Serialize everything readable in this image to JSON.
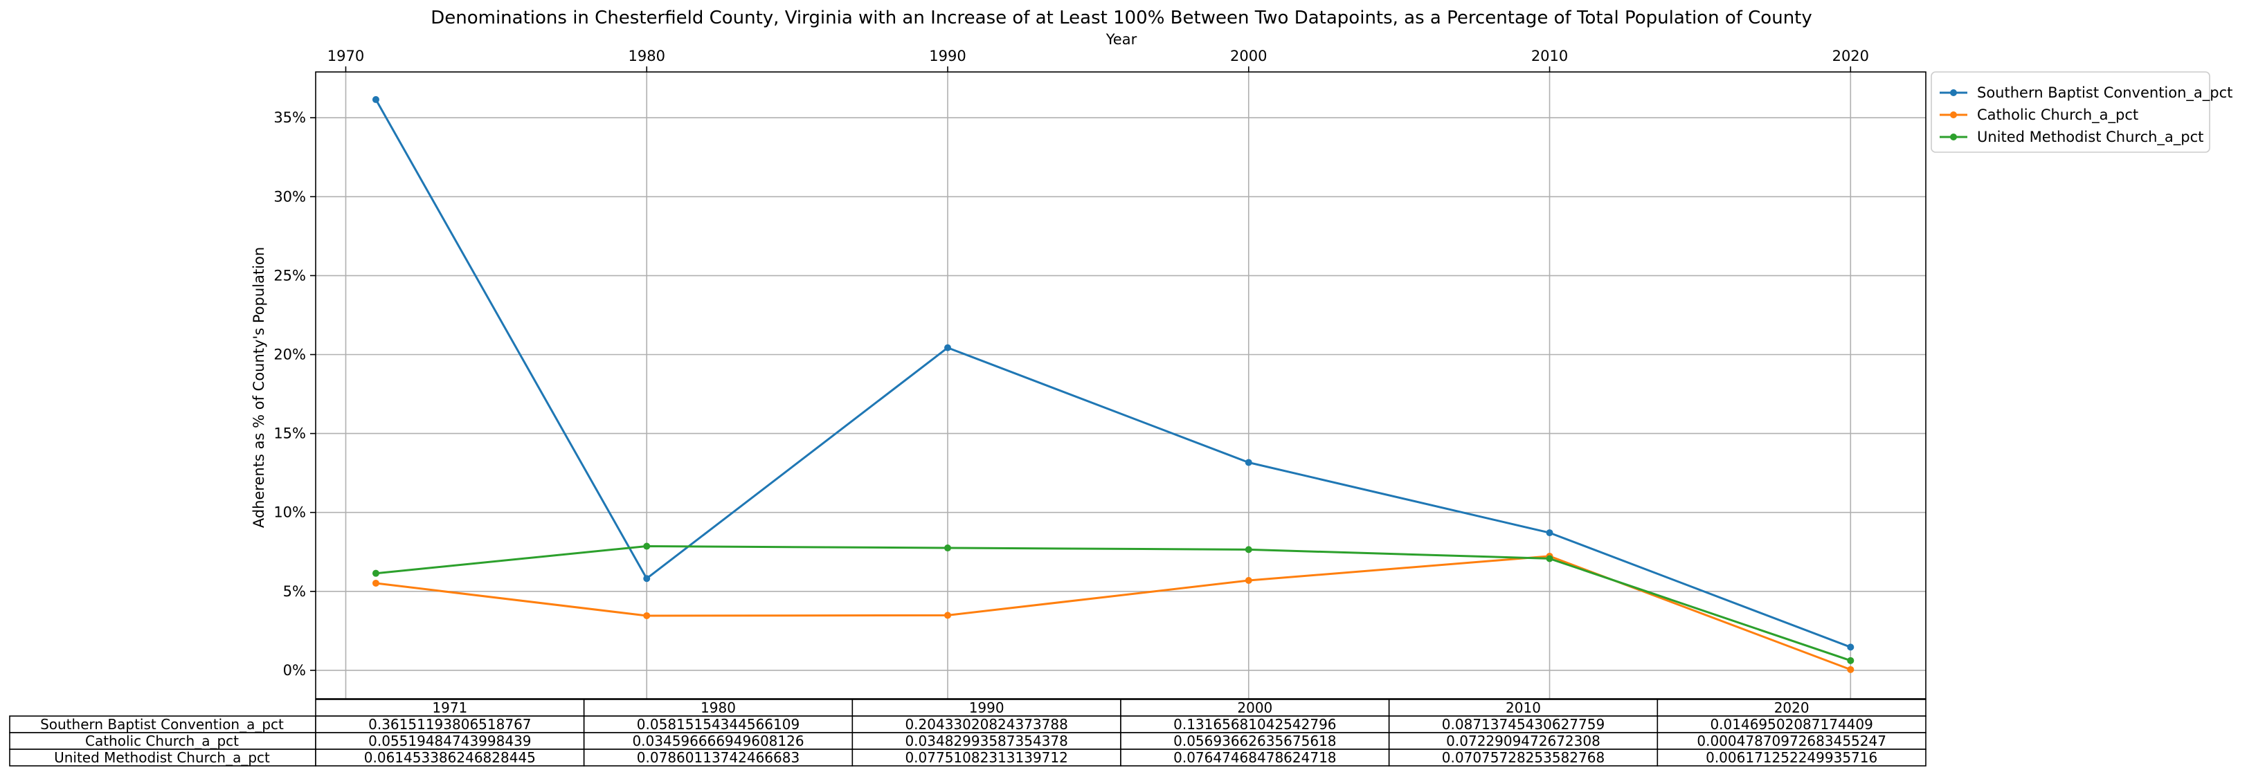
{
  "chart_data": {
    "type": "line",
    "title": "Denominations in Chesterfield County, Virginia with an Increase of at Least 100% Between Two Datapoints, as a Percentage of Total Population of County",
    "xlabel": "Year",
    "ylabel": "Adherents as % of County's Population",
    "x_ticks": [
      "1970",
      "1980",
      "1990",
      "2000",
      "2010",
      "2020"
    ],
    "y_ticks": [
      "0%",
      "5%",
      "10%",
      "15%",
      "20%",
      "25%",
      "30%",
      "35%"
    ],
    "xlim": [
      1969,
      2022.5
    ],
    "ylim": [
      -0.018,
      0.379
    ],
    "grid": true,
    "legend_position": "outside-top-right",
    "x": [
      1971,
      1980,
      1990,
      2000,
      2010,
      2020
    ],
    "series": [
      {
        "name": "Southern Baptist Convention_a_pct",
        "color": "#1f77b4",
        "values": [
          0.36151193806518767,
          0.05815154344566109,
          0.20433020824373788,
          0.13165681042542796,
          0.08713745430627759,
          0.01469502087174409
        ]
      },
      {
        "name": "Catholic Church_a_pct",
        "color": "#ff7f0e",
        "values": [
          0.05519484743998439,
          0.034596666949608126,
          0.03482993587354378,
          0.05693662635675618,
          0.0722909472672308,
          0.00047870972683455247
        ]
      },
      {
        "name": "United Methodist Church_a_pct",
        "color": "#2ca02c",
        "values": [
          0.061453386246828445,
          0.07860113742466683,
          0.07751082313139712,
          0.07647468478624718,
          0.07075728253582768,
          0.006171252249935716
        ]
      }
    ],
    "table": {
      "columns": [
        "1971",
        "1980",
        "1990",
        "2000",
        "2010",
        "2020"
      ],
      "rows": [
        {
          "label": "Southern Baptist Convention_a_pct",
          "cells": [
            "0.36151193806518767",
            "0.05815154344566109",
            "0.20433020824373788",
            "0.13165681042542796",
            "0.08713745430627759",
            "0.01469502087174409"
          ]
        },
        {
          "label": "Catholic Church_a_pct",
          "cells": [
            "0.05519484743998439",
            "0.034596666949608126",
            "0.03482993587354378",
            "0.05693662635675618",
            "0.0722909472672308",
            "0.00047870972683455247"
          ]
        },
        {
          "label": "United Methodist Church_a_pct",
          "cells": [
            "0.061453386246828445",
            "0.07860113742466683",
            "0.07751082313139712",
            "0.07647468478624718",
            "0.07075728253582768",
            "0.006171252249935716"
          ]
        }
      ]
    }
  }
}
